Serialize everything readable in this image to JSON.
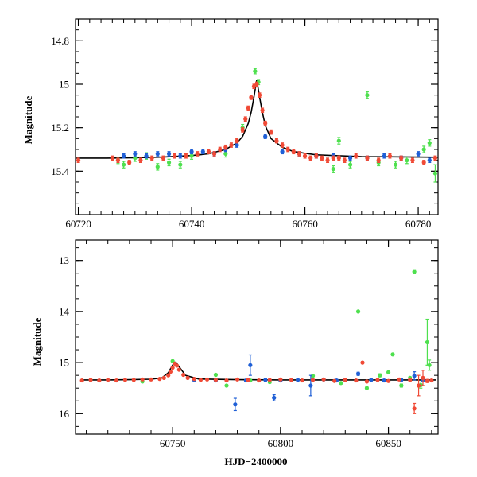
{
  "colors": {
    "blue": "#1f5fd6",
    "green": "#4ee04e",
    "red": "#f04a36",
    "model": "#000000"
  },
  "chart_data": [
    {
      "type": "scatter",
      "title": "",
      "xlabel": "",
      "ylabel": "Magnitude",
      "xlim": [
        60719.5,
        60783.5
      ],
      "ylim": [
        15.6,
        14.7
      ],
      "y_inverted": true,
      "xticks": [
        60720,
        60740,
        60760,
        60780
      ],
      "yticks": [
        14.8,
        15,
        15.2,
        15.4
      ],
      "model": {
        "x": [
          60719.5,
          60725,
          60730,
          60735,
          60740,
          60743,
          60746,
          60748,
          60749,
          60750,
          60750.5,
          60751,
          60751.5,
          60752,
          60752.5,
          60753,
          60754,
          60756,
          60758,
          60762,
          60770,
          60783.5
        ],
        "y": [
          15.34,
          15.34,
          15.338,
          15.335,
          15.328,
          15.32,
          15.3,
          15.27,
          15.24,
          15.18,
          15.13,
          15.06,
          14.98,
          15.06,
          15.13,
          15.19,
          15.25,
          15.29,
          15.31,
          15.325,
          15.333,
          15.336
        ]
      },
      "series": [
        {
          "color": "red",
          "x": [
            60720,
            60726,
            60727,
            60729,
            60731,
            60733,
            60735,
            60737,
            60739,
            60741,
            60743,
            60744,
            60745,
            60746,
            60747,
            60748,
            60749,
            60749.5,
            60750,
            60750.5,
            60751,
            60751.5,
            60752,
            60752.5,
            60753,
            60754,
            60755,
            60756,
            60757,
            60758,
            60759,
            60760,
            60761,
            60762,
            60763,
            60764,
            60765,
            60766,
            60767,
            60769,
            60771,
            60773,
            60775,
            60777,
            60779,
            60781,
            60783
          ],
          "y": [
            15.35,
            15.34,
            15.35,
            15.36,
            15.35,
            15.34,
            15.34,
            15.33,
            15.33,
            15.32,
            15.31,
            15.32,
            15.3,
            15.29,
            15.28,
            15.26,
            15.21,
            15.16,
            15.11,
            15.06,
            15.01,
            15.0,
            15.05,
            15.12,
            15.18,
            15.22,
            15.26,
            15.28,
            15.3,
            15.31,
            15.32,
            15.33,
            15.34,
            15.33,
            15.34,
            15.35,
            15.34,
            15.34,
            15.35,
            15.33,
            15.34,
            15.35,
            15.33,
            15.34,
            15.35,
            15.36,
            15.34
          ],
          "err": [
            0.01,
            0.01,
            0.01,
            0.01,
            0.01,
            0.01,
            0.01,
            0.01,
            0.01,
            0.01,
            0.01,
            0.01,
            0.01,
            0.01,
            0.01,
            0.01,
            0.01,
            0.01,
            0.01,
            0.01,
            0.01,
            0.01,
            0.01,
            0.01,
            0.01,
            0.01,
            0.01,
            0.01,
            0.01,
            0.01,
            0.01,
            0.01,
            0.01,
            0.01,
            0.01,
            0.01,
            0.01,
            0.01,
            0.01,
            0.01,
            0.01,
            0.01,
            0.01,
            0.01,
            0.01,
            0.01,
            0.01
          ]
        },
        {
          "color": "blue",
          "x": [
            60728,
            60730,
            60732,
            60734,
            60736,
            60738,
            60740,
            60742,
            60744,
            60746,
            60748,
            60753,
            60756,
            60759,
            60762,
            60765,
            60768,
            60771,
            60774,
            60777,
            60780,
            60782
          ],
          "y": [
            15.33,
            15.32,
            15.33,
            15.32,
            15.32,
            15.33,
            15.31,
            15.31,
            15.32,
            15.3,
            15.28,
            15.24,
            15.31,
            15.32,
            15.33,
            15.33,
            15.34,
            15.34,
            15.33,
            15.34,
            15.32,
            15.35
          ],
          "err": [
            0.01,
            0.01,
            0.01,
            0.01,
            0.01,
            0.01,
            0.01,
            0.01,
            0.01,
            0.01,
            0.01,
            0.01,
            0.01,
            0.01,
            0.01,
            0.01,
            0.01,
            0.01,
            0.01,
            0.01,
            0.01,
            0.01
          ]
        },
        {
          "color": "green",
          "x": [
            60727,
            60728,
            60730,
            60732,
            60734,
            60736,
            60738,
            60740,
            60746,
            60749,
            60751.2,
            60751.8,
            60765,
            60766,
            60768,
            60771,
            60773,
            60776,
            60778,
            60781,
            60782,
            60783
          ],
          "y": [
            15.35,
            15.37,
            15.34,
            15.33,
            15.38,
            15.36,
            15.37,
            15.33,
            15.32,
            15.2,
            14.94,
            14.99,
            15.39,
            15.26,
            15.37,
            15.05,
            15.36,
            15.37,
            15.35,
            15.3,
            15.27,
            15.41
          ],
          "err": [
            0.015,
            0.015,
            0.015,
            0.015,
            0.015,
            0.015,
            0.015,
            0.015,
            0.015,
            0.015,
            0.012,
            0.012,
            0.015,
            0.015,
            0.015,
            0.015,
            0.015,
            0.015,
            0.015,
            0.015,
            0.015,
            0.04
          ]
        }
      ]
    },
    {
      "type": "scatter",
      "title": "",
      "xlabel": "HJD−2400000",
      "ylabel": "Magnitude",
      "xlim": [
        60705,
        60873
      ],
      "ylim": [
        16.4,
        12.6
      ],
      "y_inverted": true,
      "xticks": [
        60750,
        60800,
        60850
      ],
      "yticks": [
        13,
        14,
        15,
        16
      ],
      "model": {
        "x": [
          60708,
          60720,
          60730,
          60740,
          60745,
          60748,
          60750,
          60751.5,
          60753,
          60756,
          60762,
          60780,
          60800,
          60830,
          60860,
          60872
        ],
        "y": [
          15.34,
          15.34,
          15.335,
          15.325,
          15.3,
          15.2,
          15.05,
          14.99,
          15.08,
          15.25,
          15.32,
          15.335,
          15.34,
          15.34,
          15.34,
          15.34
        ]
      },
      "series": [
        {
          "color": "red",
          "x": [
            60708,
            60712,
            60716,
            60720,
            60724,
            60728,
            60732,
            60736,
            60740,
            60744,
            60746,
            60748,
            60749,
            60750,
            60751,
            60752,
            60753,
            60755,
            60757,
            60760,
            60763,
            60766,
            60770,
            60775,
            60780,
            60785,
            60790,
            60795,
            60800,
            60805,
            60810,
            60815,
            60820,
            60825,
            60830,
            60835,
            60838,
            60840,
            60845,
            60850,
            60855,
            60860,
            60862,
            60864,
            60866,
            60868,
            60870
          ],
          "y": [
            15.35,
            15.34,
            15.35,
            15.34,
            15.35,
            15.34,
            15.34,
            15.33,
            15.33,
            15.32,
            15.3,
            15.25,
            15.18,
            15.1,
            15.02,
            15.06,
            15.14,
            15.24,
            15.3,
            15.32,
            15.34,
            15.33,
            15.34,
            15.35,
            15.33,
            15.34,
            15.35,
            15.34,
            15.33,
            15.34,
            15.35,
            15.34,
            15.33,
            15.36,
            15.34,
            15.35,
            15.0,
            15.37,
            15.34,
            15.36,
            15.33,
            15.34,
            15.9,
            15.45,
            15.3,
            15.36,
            15.35
          ],
          "err": [
            0.01,
            0.01,
            0.01,
            0.01,
            0.01,
            0.01,
            0.01,
            0.01,
            0.01,
            0.01,
            0.01,
            0.01,
            0.01,
            0.01,
            0.01,
            0.01,
            0.01,
            0.01,
            0.01,
            0.01,
            0.01,
            0.01,
            0.01,
            0.01,
            0.01,
            0.01,
            0.01,
            0.01,
            0.01,
            0.01,
            0.01,
            0.01,
            0.01,
            0.01,
            0.01,
            0.01,
            0.02,
            0.02,
            0.01,
            0.02,
            0.02,
            0.02,
            0.1,
            0.2,
            0.15,
            0.03,
            0.02
          ]
        },
        {
          "color": "blue",
          "x": [
            60760,
            60770,
            60779,
            60784,
            60786,
            60793,
            60797,
            60800,
            60808,
            60814,
            60820,
            60826,
            60830,
            60836,
            60842,
            60848,
            60856,
            60862,
            60866
          ],
          "y": [
            15.34,
            15.35,
            15.82,
            15.35,
            15.05,
            15.34,
            15.69,
            15.35,
            15.34,
            15.45,
            15.33,
            15.35,
            15.34,
            15.22,
            15.34,
            15.35,
            15.34,
            15.26,
            15.34
          ],
          "err": [
            0.02,
            0.02,
            0.12,
            0.02,
            0.2,
            0.02,
            0.06,
            0.02,
            0.02,
            0.2,
            0.02,
            0.02,
            0.02,
            0.03,
            0.02,
            0.02,
            0.02,
            0.08,
            0.02
          ]
        },
        {
          "color": "green",
          "x": [
            60736,
            60750,
            60770,
            60775,
            60786,
            60795,
            60815,
            60828,
            60836,
            60840,
            60846,
            60850,
            60852,
            60856,
            60860,
            60862,
            60865,
            60868,
            60869
          ],
          "y": [
            15.37,
            14.97,
            15.24,
            15.45,
            15.35,
            15.38,
            15.26,
            15.4,
            14.0,
            15.5,
            15.25,
            15.19,
            14.84,
            15.45,
            15.3,
            13.22,
            15.44,
            14.6,
            15.05
          ],
          "err": [
            0.01,
            0.01,
            0.02,
            0.01,
            0.02,
            0.02,
            0.02,
            0.02,
            0.01,
            0.03,
            0.03,
            0.02,
            0.02,
            0.03,
            0.02,
            0.04,
            0.06,
            0.45,
            0.1
          ]
        }
      ]
    }
  ]
}
